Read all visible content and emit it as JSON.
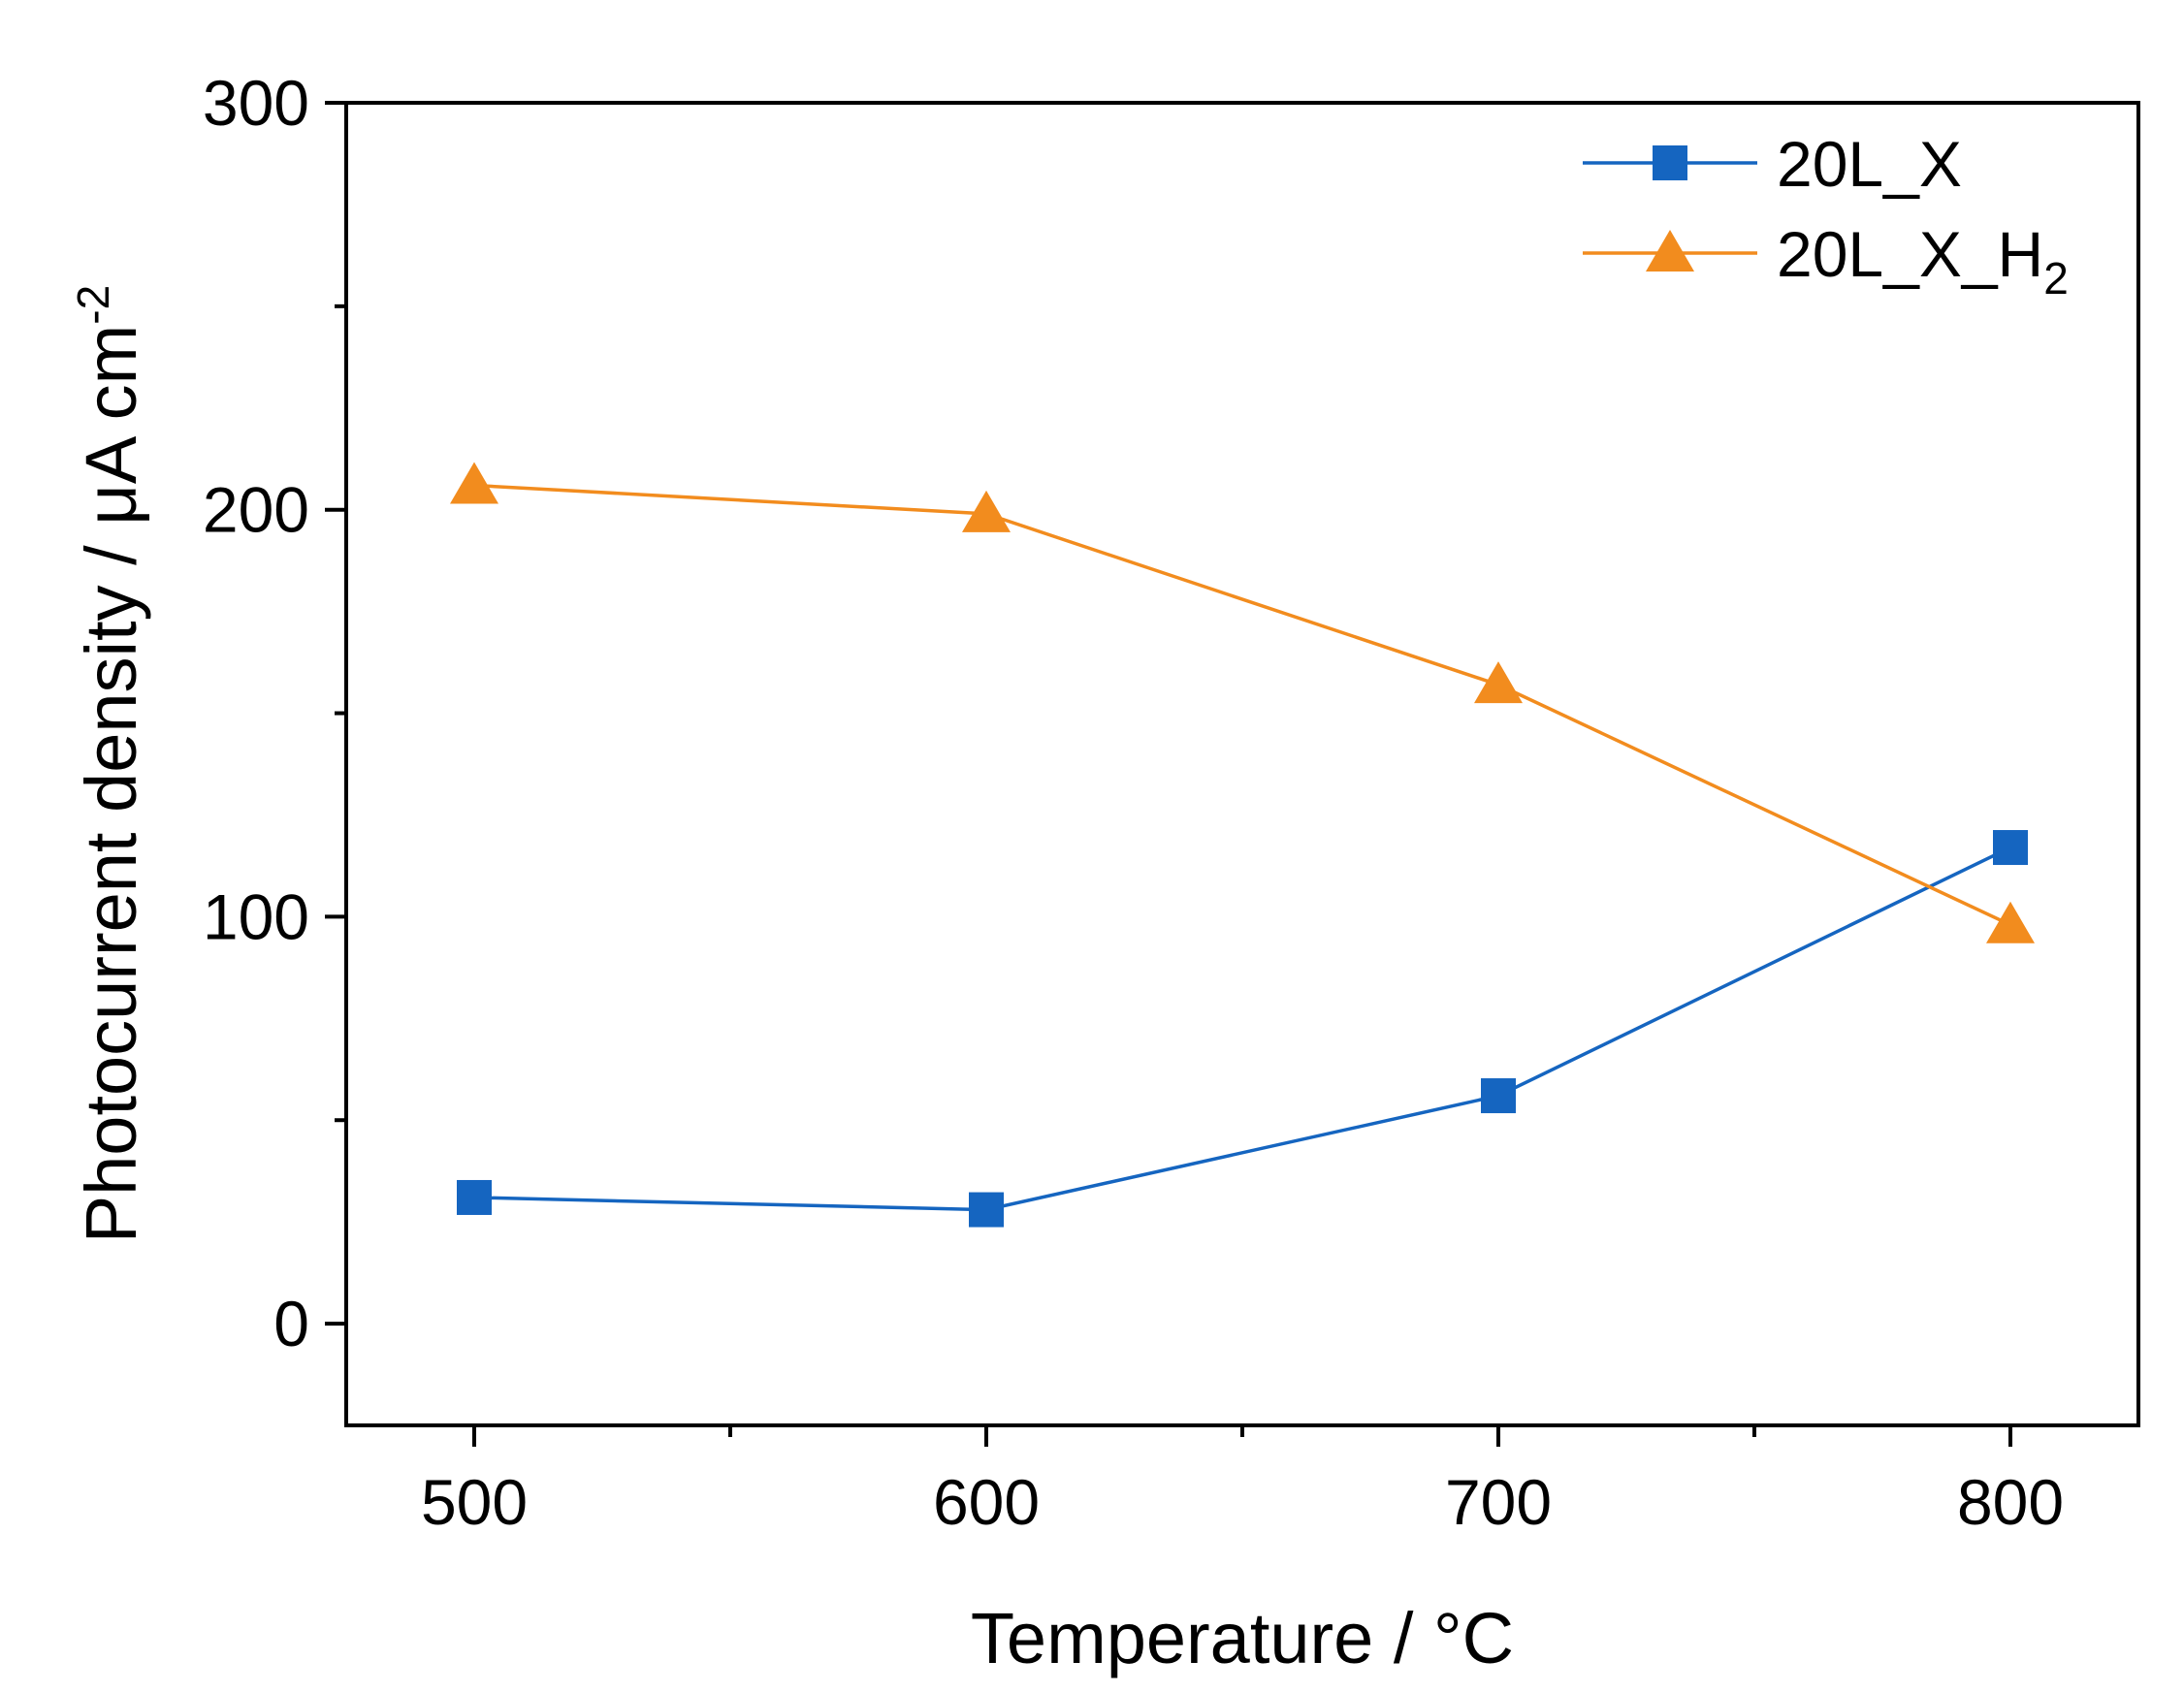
{
  "chart_data": {
    "type": "line",
    "title": "",
    "xlabel": "Temperature / °C",
    "ylabel": {
      "base": "Photocurrent density / μA cm",
      "sup": "-2"
    },
    "x": [
      500,
      600,
      700,
      800
    ],
    "xlim": [
      475,
      825
    ],
    "ylim": [
      -25,
      300
    ],
    "xticks": [
      500,
      600,
      700,
      800
    ],
    "xtick_labels": [
      "500",
      "600",
      "700",
      "800"
    ],
    "yticks": [
      0,
      100,
      200,
      300
    ],
    "ytick_labels": [
      "0",
      "100",
      "200",
      "300"
    ],
    "grid": false,
    "legend_position": "top-right",
    "series": [
      {
        "name": "20L_X",
        "name_base": "20L_X",
        "name_sub": "",
        "marker": "square",
        "color": "#1565C0",
        "values": [
          31,
          28,
          56,
          117
        ]
      },
      {
        "name": "20L_X_H2",
        "name_base": "20L_X_H",
        "name_sub": "2",
        "marker": "triangle",
        "color": "#F28C1E",
        "values": [
          206,
          199,
          157,
          98
        ]
      }
    ]
  }
}
